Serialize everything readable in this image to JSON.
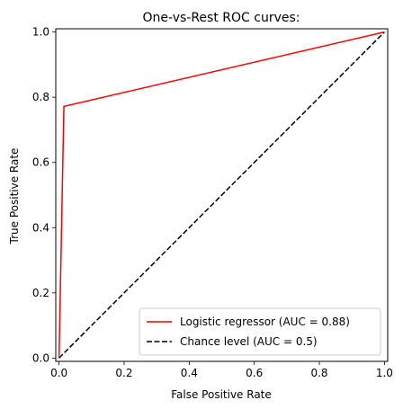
{
  "chart_data": {
    "type": "line",
    "title": "One-vs-Rest ROC curves:",
    "xlabel": "False Positive Rate",
    "ylabel": "True Positive Rate",
    "xlim": [
      -0.01,
      1.01
    ],
    "ylim": [
      -0.01,
      1.01
    ],
    "xticks": [
      0.0,
      0.2,
      0.4,
      0.6,
      0.8,
      1.0
    ],
    "yticks": [
      0.0,
      0.2,
      0.4,
      0.6,
      0.8,
      1.0
    ],
    "xtick_labels": [
      "0.0",
      "0.2",
      "0.4",
      "0.6",
      "0.8",
      "1.0"
    ],
    "ytick_labels": [
      "0.0",
      "0.2",
      "0.4",
      "0.6",
      "0.8",
      "1.0"
    ],
    "grid": false,
    "legend_position": "lower-right",
    "series": [
      {
        "name": "Logistic regressor (AUC = 0.88)",
        "color": "#ff0000",
        "style": "solid",
        "x": [
          0.0,
          0.015,
          1.0
        ],
        "y": [
          0.0,
          0.772,
          1.0
        ]
      },
      {
        "name": "Chance level (AUC = 0.5)",
        "color": "#000000",
        "style": "dashed",
        "x": [
          0.0,
          1.0
        ],
        "y": [
          0.0,
          1.0
        ]
      }
    ]
  }
}
